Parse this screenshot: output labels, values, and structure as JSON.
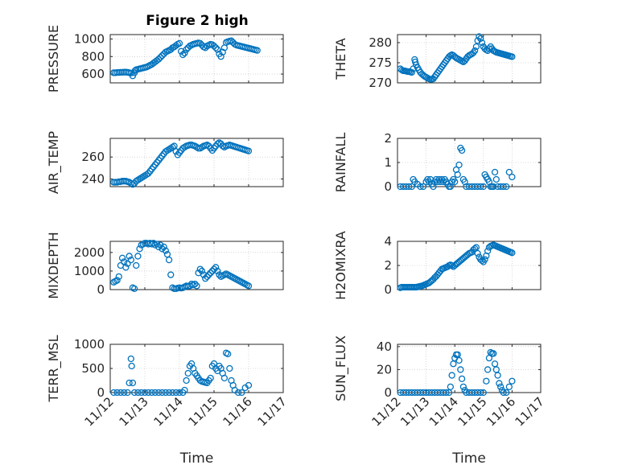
{
  "chart_data": {
    "type": "scatter",
    "title": "Figure 2 high",
    "marker_color": "#0072BD",
    "xlabel": "Time",
    "xticks": [
      "11/12",
      "11/13",
      "11/14",
      "11/15",
      "11/16",
      "11/17"
    ],
    "xlim": [
      0,
      5
    ],
    "panels": [
      {
        "id": "pressure",
        "ylabel": "PRESSURE",
        "ylim": [
          500,
          1050
        ],
        "yticks": [
          600,
          800,
          1000
        ],
        "x": [
          0.1,
          0.15,
          0.2,
          0.25,
          0.3,
          0.35,
          0.4,
          0.45,
          0.5,
          0.55,
          0.6,
          0.65,
          0.7,
          0.72,
          0.75,
          0.8,
          0.85,
          0.9,
          0.95,
          1.0,
          1.05,
          1.1,
          1.15,
          1.2,
          1.25,
          1.3,
          1.35,
          1.4,
          1.45,
          1.5,
          1.55,
          1.6,
          1.65,
          1.7,
          1.75,
          1.8,
          1.85,
          1.9,
          1.95,
          2.0,
          2.05,
          2.1,
          2.15,
          2.2,
          2.25,
          2.3,
          2.35,
          2.4,
          2.45,
          2.5,
          2.55,
          2.6,
          2.65,
          2.7,
          2.75,
          2.8,
          2.85,
          2.9,
          2.95,
          3.0,
          3.05,
          3.1,
          3.15,
          3.2,
          3.25,
          3.3,
          3.35,
          3.4,
          3.45,
          3.5,
          3.55,
          3.6,
          3.65,
          3.7,
          3.75,
          3.8,
          3.85,
          3.9,
          3.95,
          4.0,
          4.05,
          4.1,
          4.15,
          4.2,
          4.25
        ],
        "y": [
          615,
          615,
          618,
          618,
          620,
          620,
          622,
          622,
          620,
          615,
          612,
          580,
          615,
          640,
          650,
          655,
          660,
          665,
          670,
          675,
          680,
          690,
          700,
          710,
          725,
          740,
          755,
          770,
          790,
          810,
          830,
          850,
          860,
          870,
          880,
          900,
          910,
          925,
          940,
          950,
          860,
          820,
          840,
          880,
          900,
          920,
          930,
          940,
          945,
          950,
          955,
          950,
          930,
          910,
          900,
          920,
          930,
          940,
          935,
          920,
          900,
          880,
          830,
          800,
          850,
          900,
          960,
          970,
          975,
          980,
          960,
          940,
          930,
          925,
          920,
          915,
          910,
          905,
          900,
          895,
          890,
          885,
          880,
          875,
          870
        ]
      },
      {
        "id": "theta",
        "ylabel": "THETA",
        "ylim": [
          270,
          282
        ],
        "yticks": [
          270,
          275,
          280
        ],
        "x": [
          0.1,
          0.15,
          0.2,
          0.25,
          0.3,
          0.35,
          0.4,
          0.45,
          0.5,
          0.55,
          0.6,
          0.62,
          0.65,
          0.7,
          0.75,
          0.8,
          0.85,
          0.9,
          0.95,
          1.0,
          1.05,
          1.1,
          1.15,
          1.2,
          1.25,
          1.3,
          1.35,
          1.4,
          1.45,
          1.5,
          1.55,
          1.6,
          1.65,
          1.7,
          1.75,
          1.8,
          1.85,
          1.9,
          1.95,
          2.0,
          2.05,
          2.1,
          2.15,
          2.2,
          2.25,
          2.3,
          2.35,
          2.4,
          2.45,
          2.5,
          2.55,
          2.6,
          2.65,
          2.7,
          2.75,
          2.8,
          2.85,
          2.9,
          2.95,
          3.0,
          3.05,
          3.1,
          3.15,
          3.2,
          3.25,
          3.3,
          3.35,
          3.4,
          3.45,
          3.5,
          3.55,
          3.6,
          3.65,
          3.7,
          3.75,
          3.8,
          3.85,
          3.9,
          3.95,
          4.0
        ],
        "y": [
          273.5,
          273.2,
          273.0,
          273.0,
          272.9,
          272.8,
          272.8,
          272.7,
          272.6,
          273.5,
          275.8,
          275.2,
          274.5,
          273.8,
          273.2,
          272.6,
          272.2,
          271.9,
          271.6,
          271.4,
          271.2,
          271.0,
          270.9,
          270.9,
          271.0,
          271.5,
          272.0,
          272.5,
          273.0,
          273.5,
          274.0,
          274.5,
          275.0,
          275.5,
          276.0,
          276.5,
          276.8,
          277.0,
          276.8,
          276.5,
          276.2,
          276.0,
          275.8,
          275.6,
          275.4,
          275.2,
          275.5,
          276.0,
          276.5,
          276.8,
          277.0,
          277.2,
          277.5,
          278.0,
          279.0,
          280.5,
          281.5,
          281.0,
          280.0,
          279.0,
          278.5,
          278.2,
          278.0,
          278.5,
          279.0,
          278.5,
          278.0,
          277.8,
          277.6,
          277.5,
          277.4,
          277.3,
          277.2,
          277.1,
          277.0,
          276.9,
          276.8,
          276.7,
          276.6,
          276.5
        ]
      },
      {
        "id": "air_temp",
        "ylabel": "AIR_TEMP",
        "ylim": [
          233,
          277
        ],
        "yticks": [
          240,
          260
        ],
        "x": [
          0.1,
          0.15,
          0.2,
          0.25,
          0.3,
          0.35,
          0.4,
          0.45,
          0.5,
          0.55,
          0.6,
          0.65,
          0.7,
          0.75,
          0.8,
          0.85,
          0.9,
          0.95,
          1.0,
          1.05,
          1.1,
          1.15,
          1.2,
          1.25,
          1.3,
          1.35,
          1.4,
          1.45,
          1.5,
          1.55,
          1.6,
          1.65,
          1.7,
          1.75,
          1.8,
          1.85,
          1.9,
          1.95,
          2.0,
          2.05,
          2.1,
          2.15,
          2.2,
          2.25,
          2.3,
          2.35,
          2.4,
          2.45,
          2.5,
          2.55,
          2.6,
          2.65,
          2.7,
          2.75,
          2.8,
          2.85,
          2.9,
          2.95,
          3.0,
          3.05,
          3.1,
          3.15,
          3.2,
          3.25,
          3.3,
          3.35,
          3.4,
          3.45,
          3.5,
          3.55,
          3.6,
          3.65,
          3.7,
          3.75,
          3.8,
          3.85,
          3.9,
          3.95,
          4.0
        ],
        "y": [
          237,
          237,
          237,
          237.5,
          237.5,
          238,
          238,
          238,
          237.5,
          237,
          236,
          235,
          236,
          238,
          239,
          240,
          241,
          242,
          243,
          244,
          245,
          247,
          249,
          251,
          253,
          255,
          257,
          259,
          261,
          263,
          265,
          266,
          267,
          268,
          269,
          270,
          265,
          262,
          264,
          266,
          268,
          269,
          270,
          270.5,
          271,
          271,
          270.5,
          270,
          269,
          268,
          268,
          269,
          270,
          270.5,
          271,
          270,
          268,
          266,
          268,
          270,
          272,
          273,
          272,
          270,
          269,
          270,
          270.5,
          271,
          270.5,
          270,
          269.5,
          269,
          268.5,
          268,
          267.5,
          267,
          266.5,
          266,
          265.5
        ]
      },
      {
        "id": "rainfall",
        "ylabel": "RAINFALL",
        "ylim": [
          0,
          2
        ],
        "yticks": [
          0,
          1,
          2
        ],
        "x": [
          0.1,
          0.2,
          0.3,
          0.4,
          0.5,
          0.55,
          0.6,
          0.7,
          0.8,
          0.9,
          1.0,
          1.05,
          1.1,
          1.15,
          1.2,
          1.25,
          1.3,
          1.35,
          1.4,
          1.45,
          1.5,
          1.55,
          1.6,
          1.65,
          1.7,
          1.75,
          1.8,
          1.85,
          1.9,
          1.95,
          2.0,
          2.05,
          2.1,
          2.15,
          2.2,
          2.25,
          2.3,
          2.35,
          2.4,
          2.5,
          2.6,
          2.7,
          2.8,
          2.9,
          3.0,
          3.05,
          3.1,
          3.15,
          3.2,
          3.25,
          3.3,
          3.35,
          3.4,
          3.45,
          3.5,
          3.6,
          3.7,
          3.8,
          3.9,
          4.0
        ],
        "y": [
          0,
          0,
          0,
          0,
          0,
          0.3,
          0.2,
          0.1,
          0,
          0,
          0.2,
          0.3,
          0.2,
          0.3,
          0.1,
          0,
          0.2,
          0.3,
          0.2,
          0.3,
          0.2,
          0.3,
          0.2,
          0.3,
          0.2,
          0.1,
          0,
          0,
          0.2,
          0.3,
          0.2,
          0.7,
          0.5,
          0.9,
          1.6,
          1.5,
          0.3,
          0.2,
          0,
          0,
          0,
          0,
          0,
          0,
          0,
          0.5,
          0.4,
          0.3,
          0.2,
          0,
          0,
          0,
          0.6,
          0.3,
          0,
          0,
          0,
          0,
          0.6,
          0.4
        ]
      },
      {
        "id": "mixdepth",
        "ylabel": "MIXDEPTH",
        "ylim": [
          0,
          2600
        ],
        "yticks": [
          0,
          1000,
          2000
        ],
        "x": [
          0.1,
          0.15,
          0.2,
          0.25,
          0.3,
          0.35,
          0.4,
          0.45,
          0.5,
          0.55,
          0.6,
          0.65,
          0.7,
          0.75,
          0.8,
          0.85,
          0.9,
          0.95,
          1.0,
          1.05,
          1.1,
          1.15,
          1.2,
          1.25,
          1.3,
          1.35,
          1.4,
          1.45,
          1.5,
          1.55,
          1.6,
          1.65,
          1.7,
          1.75,
          1.8,
          1.85,
          1.9,
          1.95,
          2.0,
          2.05,
          2.1,
          2.15,
          2.2,
          2.25,
          2.3,
          2.35,
          2.4,
          2.45,
          2.5,
          2.55,
          2.6,
          2.65,
          2.7,
          2.75,
          2.8,
          2.85,
          2.9,
          2.95,
          3.0,
          3.05,
          3.1,
          3.15,
          3.2,
          3.25,
          3.3,
          3.35,
          3.4,
          3.45,
          3.5,
          3.55,
          3.6,
          3.65,
          3.7,
          3.75,
          3.8,
          3.85,
          3.9,
          3.95,
          4.0
        ],
        "y": [
          400,
          450,
          500,
          700,
          1300,
          1700,
          1500,
          1200,
          1400,
          1800,
          1600,
          100,
          50,
          1300,
          1800,
          2200,
          2400,
          2450,
          2500,
          2500,
          2450,
          2500,
          2450,
          2500,
          2400,
          2450,
          2300,
          2400,
          2200,
          2300,
          2100,
          1900,
          1600,
          800,
          100,
          50,
          50,
          80,
          100,
          80,
          100,
          150,
          200,
          180,
          200,
          300,
          250,
          300,
          200,
          900,
          1100,
          1000,
          800,
          600,
          700,
          800,
          900,
          1000,
          1100,
          1200,
          1000,
          800,
          700,
          750,
          800,
          850,
          800,
          750,
          700,
          650,
          600,
          550,
          500,
          450,
          400,
          350,
          300,
          250,
          200
        ]
      },
      {
        "id": "h2omixra",
        "ylabel": "H2OMIXRA",
        "ylim": [
          0,
          4
        ],
        "yticks": [
          0,
          2,
          4
        ],
        "x": [
          0.1,
          0.15,
          0.2,
          0.25,
          0.3,
          0.35,
          0.4,
          0.45,
          0.5,
          0.55,
          0.6,
          0.65,
          0.7,
          0.75,
          0.8,
          0.85,
          0.9,
          0.95,
          1.0,
          1.05,
          1.1,
          1.15,
          1.2,
          1.25,
          1.3,
          1.35,
          1.4,
          1.45,
          1.5,
          1.55,
          1.6,
          1.65,
          1.7,
          1.75,
          1.8,
          1.85,
          1.9,
          1.95,
          2.0,
          2.05,
          2.1,
          2.15,
          2.2,
          2.25,
          2.3,
          2.35,
          2.4,
          2.45,
          2.5,
          2.55,
          2.6,
          2.65,
          2.7,
          2.75,
          2.8,
          2.85,
          2.9,
          2.95,
          3.0,
          3.05,
          3.1,
          3.15,
          3.2,
          3.25,
          3.3,
          3.35,
          3.4,
          3.45,
          3.5,
          3.55,
          3.6,
          3.65,
          3.7,
          3.75,
          3.8,
          3.85,
          3.9,
          3.95,
          4.0
        ],
        "y": [
          0.15,
          0.2,
          0.2,
          0.2,
          0.2,
          0.2,
          0.2,
          0.2,
          0.2,
          0.2,
          0.2,
          0.2,
          0.22,
          0.25,
          0.28,
          0.3,
          0.35,
          0.4,
          0.45,
          0.5,
          0.55,
          0.65,
          0.75,
          0.85,
          1.0,
          1.1,
          1.25,
          1.4,
          1.55,
          1.7,
          1.75,
          1.8,
          1.85,
          1.9,
          2.0,
          2.05,
          2.0,
          1.9,
          2.0,
          2.1,
          2.2,
          2.3,
          2.4,
          2.5,
          2.6,
          2.7,
          2.8,
          2.9,
          3.0,
          3.05,
          3.1,
          3.3,
          3.4,
          3.5,
          3.0,
          2.7,
          2.5,
          2.4,
          2.3,
          2.5,
          2.8,
          3.2,
          3.5,
          3.6,
          3.65,
          3.7,
          3.65,
          3.6,
          3.55,
          3.5,
          3.45,
          3.4,
          3.35,
          3.3,
          3.25,
          3.2,
          3.15,
          3.1,
          3.05
        ]
      },
      {
        "id": "terr_msl",
        "ylabel": "TERR_MSL",
        "ylim": [
          0,
          1000
        ],
        "yticks": [
          0,
          500,
          1000
        ],
        "x": [
          0.1,
          0.2,
          0.3,
          0.4,
          0.5,
          0.55,
          0.6,
          0.62,
          0.65,
          0.7,
          0.8,
          0.9,
          1.0,
          1.1,
          1.2,
          1.3,
          1.4,
          1.5,
          1.6,
          1.7,
          1.8,
          1.9,
          2.0,
          2.1,
          2.15,
          2.2,
          2.25,
          2.3,
          2.35,
          2.4,
          2.45,
          2.5,
          2.55,
          2.6,
          2.65,
          2.7,
          2.75,
          2.8,
          2.85,
          2.9,
          2.95,
          3.0,
          3.05,
          3.1,
          3.15,
          3.2,
          3.25,
          3.3,
          3.35,
          3.4,
          3.45,
          3.5,
          3.55,
          3.6,
          3.7,
          3.8,
          3.9,
          4.0
        ],
        "y": [
          0,
          0,
          0,
          0,
          0,
          200,
          700,
          550,
          200,
          0,
          0,
          0,
          0,
          0,
          0,
          0,
          0,
          0,
          0,
          0,
          0,
          0,
          0,
          0,
          50,
          250,
          400,
          550,
          600,
          500,
          400,
          350,
          300,
          250,
          230,
          220,
          210,
          200,
          250,
          300,
          550,
          600,
          500,
          450,
          550,
          500,
          400,
          300,
          820,
          800,
          500,
          250,
          150,
          50,
          0,
          0,
          100,
          150
        ]
      },
      {
        "id": "sun_flux",
        "ylabel": "SUN_FLUX",
        "ylim": [
          0,
          42
        ],
        "yticks": [
          0,
          20,
          40
        ],
        "x": [
          0.1,
          0.2,
          0.3,
          0.4,
          0.5,
          0.6,
          0.7,
          0.8,
          0.9,
          1.0,
          1.1,
          1.2,
          1.3,
          1.4,
          1.5,
          1.6,
          1.7,
          1.8,
          1.85,
          1.9,
          1.95,
          2.0,
          2.05,
          2.1,
          2.15,
          2.2,
          2.25,
          2.3,
          2.35,
          2.4,
          2.5,
          2.6,
          2.7,
          2.8,
          2.9,
          3.0,
          3.1,
          3.15,
          3.2,
          3.25,
          3.3,
          3.35,
          3.4,
          3.45,
          3.5,
          3.55,
          3.6,
          3.65,
          3.7,
          3.8,
          3.9,
          4.0
        ],
        "y": [
          0,
          0,
          0,
          0,
          0,
          0,
          0,
          0,
          0,
          0,
          0,
          0,
          0,
          0,
          0,
          0,
          0,
          0,
          5,
          15,
          25,
          30,
          33,
          33,
          28,
          20,
          12,
          5,
          2,
          0,
          0,
          0,
          0,
          0,
          0,
          0,
          10,
          20,
          30,
          35,
          34,
          34,
          25,
          20,
          15,
          8,
          5,
          2,
          0,
          0,
          5,
          10
        ]
      }
    ]
  }
}
